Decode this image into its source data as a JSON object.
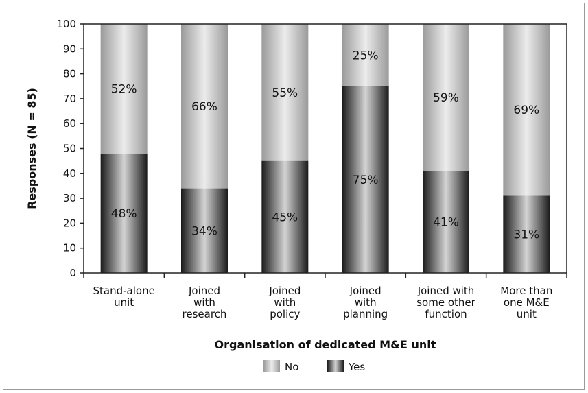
{
  "chart_data": {
    "type": "bar",
    "stacked": true,
    "percent_stacked": true,
    "categories": [
      [
        "Stand-alone",
        "unit"
      ],
      [
        "Joined",
        "with",
        "research"
      ],
      [
        "Joined",
        "with",
        "policy"
      ],
      [
        "Joined",
        "with",
        "planning"
      ],
      [
        "Joined with",
        "some other",
        "function"
      ],
      [
        "More than",
        "one M&E",
        "unit"
      ]
    ],
    "series": [
      {
        "name": "Yes",
        "values": [
          48,
          34,
          45,
          75,
          41,
          31
        ],
        "labels": [
          "48%",
          "34%",
          "45%",
          "75%",
          "41%",
          "31%"
        ],
        "color": "#1e1e1e"
      },
      {
        "name": "No",
        "values": [
          52,
          66,
          55,
          25,
          59,
          69
        ],
        "labels": [
          "52%",
          "66%",
          "55%",
          "25%",
          "59%",
          "69%"
        ],
        "color": "#c8c8c8"
      }
    ],
    "legend_order": [
      "No",
      "Yes"
    ],
    "legend_position": "bottom",
    "xlabel": "Organisation of dedicated M&E unit",
    "ylabel": "Responses (N = 85)",
    "ylim": [
      0,
      100
    ],
    "yticks": [
      0,
      10,
      20,
      30,
      40,
      50,
      60,
      70,
      80,
      90,
      100
    ],
    "grid": false
  }
}
